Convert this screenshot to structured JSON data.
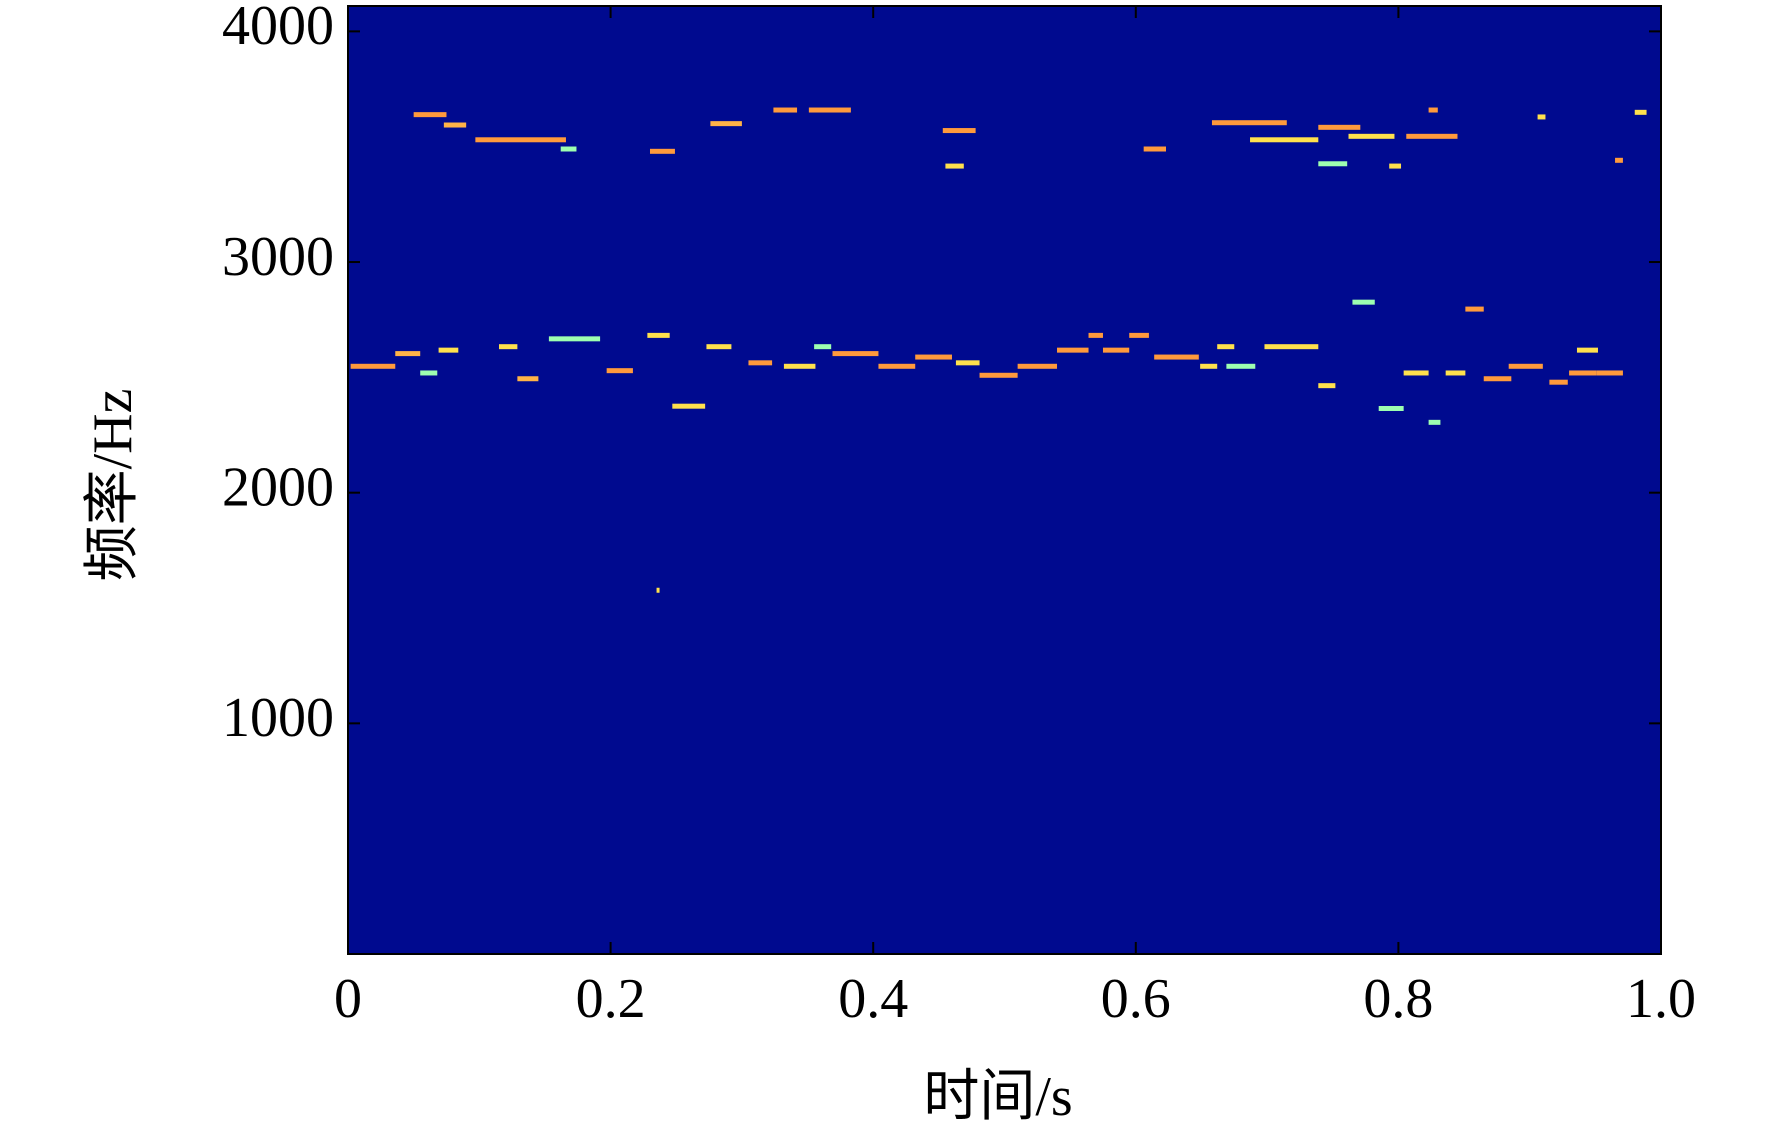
{
  "chart_data": {
    "type": "spectrogram",
    "xlabel": "时间/s",
    "ylabel": "频率/Hz",
    "xlim": [
      0,
      1
    ],
    "ylim": [
      0,
      4110
    ],
    "xticks": [
      0,
      0.2,
      0.4,
      0.6,
      0.8,
      {
        "value": 1,
        "label": "1.0"
      }
    ],
    "yticks": [
      1000,
      2000,
      3000,
      4000
    ],
    "background_color": "#000a8f",
    "segments": {
      "x0": [
        0.05,
        0.073,
        0.097,
        0.162,
        0.23,
        0.276,
        0.324,
        0.351,
        0.453,
        0.455,
        0.606,
        0.658,
        0.687,
        0.739,
        0.739,
        0.762,
        0.806,
        0.823,
        0.965,
        0.98,
        0.906,
        0.793,
        0.002,
        0.036,
        0.055,
        0.069,
        0.115,
        0.129,
        0.153,
        0.197,
        0.228,
        0.247,
        0.273,
        0.305,
        0.332,
        0.355,
        0.369,
        0.404,
        0.432,
        0.463,
        0.481,
        0.51,
        0.54,
        0.564,
        0.575,
        0.595,
        0.614,
        0.649,
        0.662,
        0.669,
        0.698,
        0.739,
        0.765,
        0.785,
        0.804,
        0.823,
        0.836,
        0.851,
        0.865,
        0.884,
        0.915,
        0.93,
        0.936,
        0.951,
        0.235
      ],
      "x1": [
        0.075,
        0.09,
        0.166,
        0.174,
        0.249,
        0.3,
        0.342,
        0.383,
        0.478,
        0.469,
        0.623,
        0.715,
        0.739,
        0.771,
        0.761,
        0.797,
        0.845,
        0.83,
        0.971,
        0.989,
        0.912,
        0.802,
        0.036,
        0.055,
        0.068,
        0.084,
        0.129,
        0.145,
        0.192,
        0.217,
        0.245,
        0.272,
        0.292,
        0.323,
        0.356,
        0.368,
        0.404,
        0.432,
        0.46,
        0.481,
        0.51,
        0.54,
        0.564,
        0.575,
        0.595,
        0.61,
        0.648,
        0.662,
        0.675,
        0.691,
        0.739,
        0.752,
        0.782,
        0.804,
        0.823,
        0.832,
        0.851,
        0.865,
        0.886,
        0.91,
        0.929,
        0.951,
        0.952,
        0.971,
        0.237
      ],
      "y": [
        3639,
        3594,
        3530,
        3490,
        3480,
        3600,
        3659,
        3659,
        3570,
        3416,
        3490,
        3604,
        3530,
        3584,
        3426,
        3545,
        3545,
        3659,
        3441,
        3649,
        3629,
        3416,
        2548,
        2603,
        2519,
        2618,
        2633,
        2494,
        2667,
        2529,
        2682,
        2375,
        2633,
        2563,
        2548,
        2633,
        2603,
        2548,
        2588,
        2563,
        2509,
        2548,
        2618,
        2682,
        2618,
        2682,
        2588,
        2548,
        2633,
        2548,
        2633,
        2464,
        2826,
        2365,
        2519,
        2305,
        2519,
        2796,
        2494,
        2548,
        2479,
        2519,
        2618,
        2519,
        1577
      ],
      "color": [
        "#ff9a3c",
        "#ffb347",
        "#ff9a3c",
        "#9dffb0",
        "#ff9a3c",
        "#ffb347",
        "#ff9a3c",
        "#ff9a3c",
        "#ff9a3c",
        "#ffe14d",
        "#ff9a3c",
        "#ff9a3c",
        "#ffe14d",
        "#ff9a3c",
        "#9dffb0",
        "#ffe14d",
        "#ff9a3c",
        "#ff9a3c",
        "#ff9a3c",
        "#ffe14d",
        "#ffe14d",
        "#ffe14d",
        "#ff9a3c",
        "#ffb347",
        "#9dffb0",
        "#ffe14d",
        "#ffe14d",
        "#ffb347",
        "#9dffb0",
        "#ff9a3c",
        "#ffe14d",
        "#ffe14d",
        "#ffe14d",
        "#ff9a3c",
        "#ffe14d",
        "#9dffb0",
        "#ff9a3c",
        "#ff9a3c",
        "#ff9a3c",
        "#ffe14d",
        "#ff9a3c",
        "#ff9a3c",
        "#ff9a3c",
        "#ff9a3c",
        "#ff9a3c",
        "#ff9a3c",
        "#ff9a3c",
        "#ffe14d",
        "#ffe14d",
        "#9dffb0",
        "#ffe14d",
        "#ffe14d",
        "#9dffb0",
        "#9dffb0",
        "#ffe14d",
        "#9dffb0",
        "#ffe14d",
        "#ff9a3c",
        "#ff9a3c",
        "#ff9a3c",
        "#ff9a3c",
        "#ff9a3c",
        "#ffe14d",
        "#ff9a3c",
        "#ffe14d"
      ]
    }
  }
}
